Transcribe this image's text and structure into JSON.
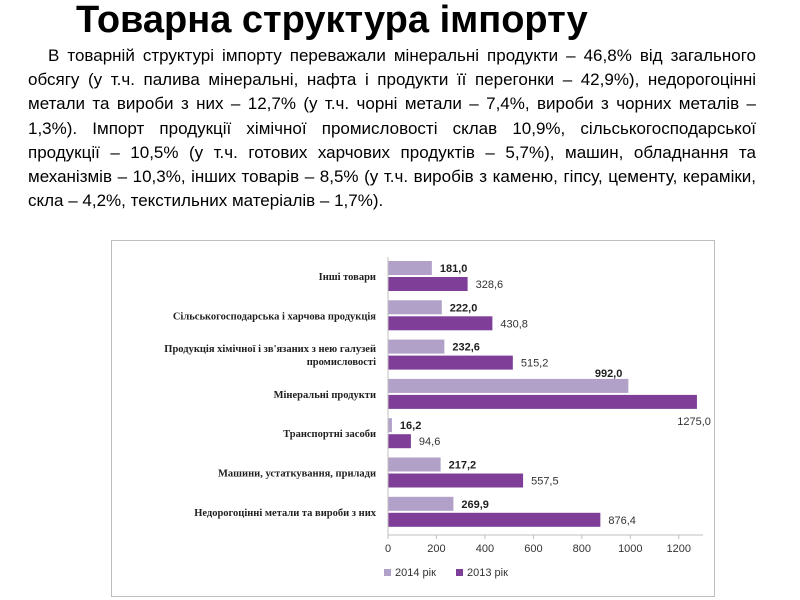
{
  "slide": {
    "title": "Товарна структура імпорту",
    "paragraph": "В товарній структурі імпорту переважали мінеральні продукти – 46,8% від загального обсягу (у т.ч. палива мінеральні, нафта і продукти її перегонки – 42,9%), недорогоцінні метали та вироби з них – 12,7% (у т.ч. чорні метали – 7,4%, вироби з чорних металів – 1,3%). Імпорт продукції хімічної промисловості склав 10,9%, сільськогосподарської продукції – 10,5% (у т.ч. готових харчових продуктів – 5,7%), машин, обладнання та механізмів – 10,3%, інших товарів – 8,5% (у т.ч. виробів з каменю, гіпсу, цементу, кераміки, скла – 4,2%, текстильних матеріалів – 1,7%)."
  },
  "chart_data": {
    "type": "bar",
    "orientation": "horizontal",
    "categories": [
      [
        "Інші товари"
      ],
      [
        "Сільськогосподарська   і харчова  продукція"
      ],
      [
        "Продукція  хімічної  і зв'язаних з нею галузей",
        "промисловості"
      ],
      [
        "Мінеральні  продукти"
      ],
      [
        "Транспортні   засоби"
      ],
      [
        "Машини,  устаткування,  прилади"
      ],
      [
        "Недорогоцінні  метали та вироби  з  них"
      ]
    ],
    "series": [
      {
        "name": "2014 рік",
        "color": "#b1a0c7",
        "values": [
          181.0,
          222.0,
          232.6,
          992.0,
          16.2,
          217.2,
          269.9
        ],
        "labels": [
          "181,0",
          "222,0",
          "232,6",
          "992,0",
          "16,2",
          "217,2",
          "269,9"
        ]
      },
      {
        "name": "2013 рік",
        "color": "#7f3f98",
        "values": [
          328.6,
          430.8,
          515.2,
          1275.0,
          94.6,
          557.5,
          876.4
        ],
        "labels": [
          "328,6",
          "430,8",
          "515,2",
          "1275,0",
          "94,6",
          "557,5",
          "876,4"
        ]
      }
    ],
    "xlim": [
      0,
      1300
    ],
    "xticks": [
      0,
      200,
      400,
      600,
      800,
      1000,
      1200
    ],
    "grid": false,
    "legend": "bottom-left"
  }
}
